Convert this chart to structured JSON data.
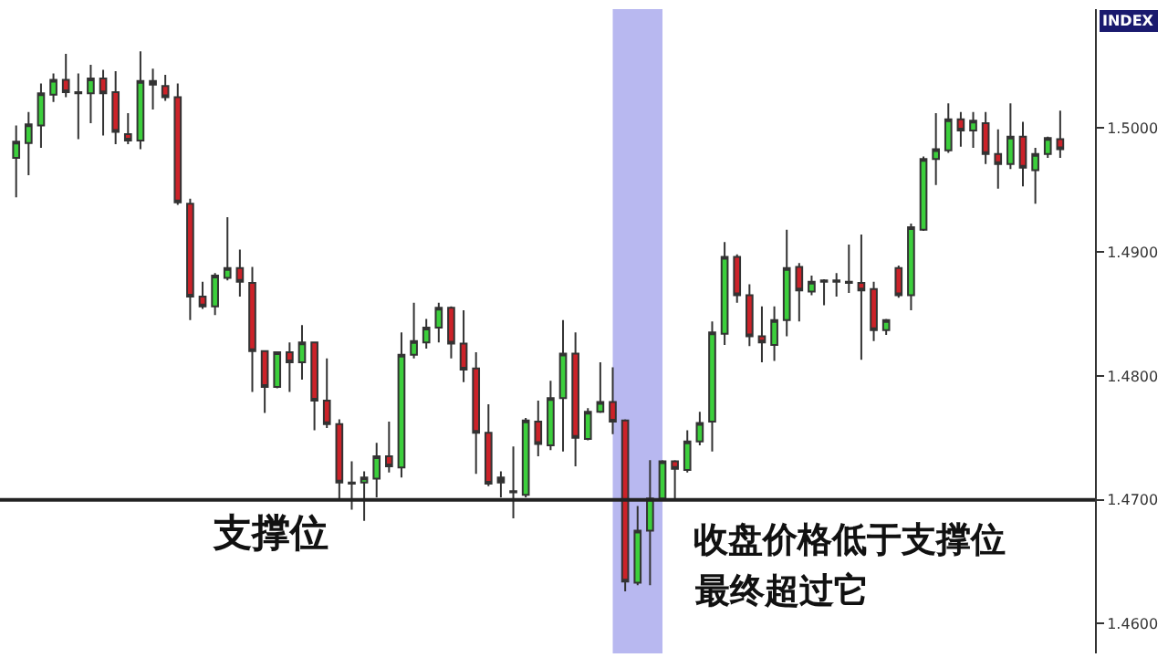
{
  "chart_data": {
    "type": "candlestick",
    "categories": [
      null,
      null,
      null,
      null,
      null,
      null,
      null,
      null,
      null,
      null,
      null,
      null,
      null,
      null,
      null,
      null,
      null,
      null,
      null,
      null,
      null,
      null,
      null,
      null,
      null,
      null,
      null,
      null,
      null,
      null,
      null,
      null,
      null,
      null,
      null,
      null,
      null,
      null,
      null,
      null,
      null,
      null,
      null,
      null,
      null,
      null,
      null,
      null,
      null,
      null,
      null,
      null,
      null,
      null,
      null,
      null,
      null,
      null,
      null,
      null,
      null,
      null,
      null,
      null,
      null,
      null,
      null,
      null,
      null,
      null,
      null,
      null,
      null,
      null,
      null,
      null,
      null,
      null,
      null,
      null,
      null,
      null,
      null,
      null,
      null
    ],
    "ohlc": [
      [
        1.4976,
        1.5002,
        1.4944,
        1.4989
      ],
      [
        1.4988,
        1.5013,
        1.4962,
        1.5003
      ],
      [
        1.5002,
        1.5036,
        1.4984,
        1.5028
      ],
      [
        1.5027,
        1.5044,
        1.5021,
        1.5039
      ],
      [
        1.5039,
        1.506,
        1.5025,
        1.5029
      ],
      [
        1.5028,
        1.5044,
        1.4991,
        1.5029
      ],
      [
        1.5028,
        1.5051,
        1.5004,
        1.504
      ],
      [
        1.504,
        1.5047,
        1.4994,
        1.5028
      ],
      [
        1.5029,
        1.5046,
        1.4987,
        1.4997
      ],
      [
        1.4995,
        1.5012,
        1.4987,
        1.499
      ],
      [
        1.499,
        1.5062,
        1.4983,
        1.5038
      ],
      [
        1.5035,
        1.5048,
        1.5015,
        1.5038
      ],
      [
        1.5034,
        1.5043,
        1.5022,
        1.5025
      ],
      [
        1.5025,
        1.5036,
        1.4938,
        1.494
      ],
      [
        1.4939,
        1.4943,
        1.4845,
        1.4864
      ],
      [
        1.4864,
        1.4876,
        1.4854,
        1.4856
      ],
      [
        1.4856,
        1.4883,
        1.4849,
        1.4881
      ],
      [
        1.4879,
        1.4928,
        1.4877,
        1.4887
      ],
      [
        1.4887,
        1.4902,
        1.4864,
        1.4876
      ],
      [
        1.4875,
        1.4888,
        1.4787,
        1.482
      ],
      [
        1.482,
        1.482,
        1.477,
        1.4791
      ],
      [
        1.4791,
        1.4819,
        1.479,
        1.4819
      ],
      [
        1.4819,
        1.4827,
        1.4787,
        1.4811
      ],
      [
        1.4811,
        1.4841,
        1.4797,
        1.4827
      ],
      [
        1.4827,
        1.4827,
        1.4756,
        1.478
      ],
      [
        1.478,
        1.4814,
        1.4758,
        1.4761
      ],
      [
        1.4761,
        1.4765,
        1.47,
        1.4714
      ],
      [
        1.4713,
        1.4731,
        1.4692,
        1.4714
      ],
      [
        1.4714,
        1.4723,
        1.4683,
        1.4718
      ],
      [
        1.4717,
        1.4746,
        1.4702,
        1.4735
      ],
      [
        1.4735,
        1.4763,
        1.4722,
        1.4727
      ],
      [
        1.4726,
        1.4835,
        1.4718,
        1.4817
      ],
      [
        1.4817,
        1.4859,
        1.4814,
        1.4828
      ],
      [
        1.4827,
        1.4846,
        1.4822,
        1.4839
      ],
      [
        1.4839,
        1.4859,
        1.4827,
        1.4855
      ],
      [
        1.4855,
        1.4856,
        1.4814,
        1.4826
      ],
      [
        1.4826,
        1.4853,
        1.4795,
        1.4805
      ],
      [
        1.4806,
        1.4819,
        1.4721,
        1.4754
      ],
      [
        1.4754,
        1.4777,
        1.4711,
        1.4713
      ],
      [
        1.4714,
        1.4723,
        1.4702,
        1.4718
      ],
      [
        1.4706,
        1.4743,
        1.4685,
        1.4707
      ],
      [
        1.4704,
        1.4766,
        1.4702,
        1.4764
      ],
      [
        1.4763,
        1.478,
        1.4735,
        1.4745
      ],
      [
        1.4744,
        1.4796,
        1.474,
        1.4782
      ],
      [
        1.4782,
        1.4845,
        1.4739,
        1.4818
      ],
      [
        1.4818,
        1.4835,
        1.4727,
        1.475
      ],
      [
        1.4749,
        1.4774,
        1.4748,
        1.4771
      ],
      [
        1.4771,
        1.4811,
        1.477,
        1.4779
      ],
      [
        1.4779,
        1.4807,
        1.4753,
        1.4763
      ],
      [
        1.4764,
        1.4765,
        1.4626,
        1.4634
      ],
      [
        1.4633,
        1.4695,
        1.4631,
        1.4675
      ],
      [
        1.4675,
        1.4732,
        1.4631,
        1.4701
      ],
      [
        1.4701,
        1.4732,
        1.4699,
        1.4731
      ],
      [
        1.4731,
        1.4732,
        1.4701,
        1.4725
      ],
      [
        1.4724,
        1.4756,
        1.4722,
        1.4747
      ],
      [
        1.4747,
        1.4771,
        1.4744,
        1.4762
      ],
      [
        1.4763,
        1.4844,
        1.4739,
        1.4835
      ],
      [
        1.4834,
        1.4908,
        1.4825,
        1.4896
      ],
      [
        1.4896,
        1.4898,
        1.4859,
        1.4865
      ],
      [
        1.4865,
        1.4874,
        1.4824,
        1.4832
      ],
      [
        1.4832,
        1.4856,
        1.4811,
        1.4827
      ],
      [
        1.4825,
        1.4856,
        1.4812,
        1.4845
      ],
      [
        1.4845,
        1.4918,
        1.4832,
        1.4887
      ],
      [
        1.4888,
        1.4891,
        1.4844,
        1.4869
      ],
      [
        1.4868,
        1.4881,
        1.4865,
        1.4876
      ],
      [
        1.4876,
        1.4878,
        1.4857,
        1.4877
      ],
      [
        1.4876,
        1.4883,
        1.4864,
        1.4877
      ],
      [
        1.4875,
        1.4906,
        1.4867,
        1.4876
      ],
      [
        1.4875,
        1.4914,
        1.4813,
        1.4869
      ],
      [
        1.487,
        1.4876,
        1.4828,
        1.4837
      ],
      [
        1.4837,
        1.4846,
        1.4833,
        1.4845
      ],
      [
        1.4887,
        1.4889,
        1.4863,
        1.4865
      ],
      [
        1.4865,
        1.4923,
        1.4853,
        1.492
      ],
      [
        1.4918,
        1.4977,
        1.4917,
        1.4975
      ],
      [
        1.4975,
        1.5012,
        1.4954,
        1.4983
      ],
      [
        1.4982,
        1.502,
        1.498,
        1.5007
      ],
      [
        1.5007,
        1.5013,
        1.4985,
        1.4998
      ],
      [
        1.4998,
        1.5013,
        1.4984,
        1.5006
      ],
      [
        1.5004,
        1.5013,
        1.4971,
        1.4979
      ],
      [
        1.4979,
        1.4999,
        1.4951,
        1.4971
      ],
      [
        1.4971,
        1.502,
        1.4967,
        1.4993
      ],
      [
        1.4993,
        1.5005,
        1.4953,
        1.4968
      ],
      [
        1.4966,
        1.4984,
        1.4939,
        1.4979
      ],
      [
        1.4979,
        1.4993,
        1.4976,
        1.4992
      ],
      [
        1.4991,
        1.5014,
        1.4976,
        1.4983
      ]
    ],
    "colors": [
      "#3ccf3c",
      "#3ccf3c",
      "#3ccf3c",
      "#3ccf3c",
      "#cc2229",
      "#333333",
      "#3ccf3c",
      "#cc2229",
      "#cc2229",
      "#cc2229",
      "#3ccf3c",
      "#333333",
      "#cc2229",
      "#cc2229",
      "#cc2229",
      "#cc2229",
      "#3ccf3c",
      "#3ccf3c",
      "#cc2229",
      "#cc2229",
      "#cc2229",
      "#3ccf3c",
      "#cc2229",
      "#3ccf3c",
      "#cc2229",
      "#cc2229",
      "#cc2229",
      "#333333",
      "#3ccf3c",
      "#3ccf3c",
      "#cc2229",
      "#3ccf3c",
      "#3ccf3c",
      "#3ccf3c",
      "#3ccf3c",
      "#cc2229",
      "#cc2229",
      "#cc2229",
      "#cc2229",
      "#333333",
      "#333333",
      "#3ccf3c",
      "#cc2229",
      "#3ccf3c",
      "#3ccf3c",
      "#cc2229",
      "#3ccf3c",
      "#3ccf3c",
      "#cc2229",
      "#cc2229",
      "#3ccf3c",
      "#3ccf3c",
      "#3ccf3c",
      "#cc2229",
      "#3ccf3c",
      "#3ccf3c",
      "#3ccf3c",
      "#3ccf3c",
      "#cc2229",
      "#cc2229",
      "#cc2229",
      "#3ccf3c",
      "#3ccf3c",
      "#cc2229",
      "#3ccf3c",
      "#333333",
      "#333333",
      "#333333",
      "#cc2229",
      "#cc2229",
      "#3ccf3c",
      "#cc2229",
      "#3ccf3c",
      "#3ccf3c",
      "#3ccf3c",
      "#3ccf3c",
      "#cc2229",
      "#3ccf3c",
      "#cc2229",
      "#cc2229",
      "#3ccf3c",
      "#cc2229",
      "#3ccf3c",
      "#3ccf3c",
      "#cc2229"
    ],
    "ylim": [
      1.4576,
      1.5096
    ],
    "yticks": [
      {
        "value": 1.46,
        "label": "1.4600"
      },
      {
        "value": 1.47,
        "label": "1.4700"
      },
      {
        "value": 1.48,
        "label": "1.4800"
      },
      {
        "value": 1.49,
        "label": "1.4900"
      },
      {
        "value": 1.5,
        "label": "1.5000"
      }
    ],
    "tick_labels": "y",
    "ref_lines": [
      {
        "axis": "y",
        "value": 1.47,
        "label": "支撑位",
        "color": "#222222",
        "line_style": "solid"
      }
    ],
    "annotations": [
      "收盘价格低于支撑位",
      "最终超过它",
      "INDEX"
    ]
  }
}
